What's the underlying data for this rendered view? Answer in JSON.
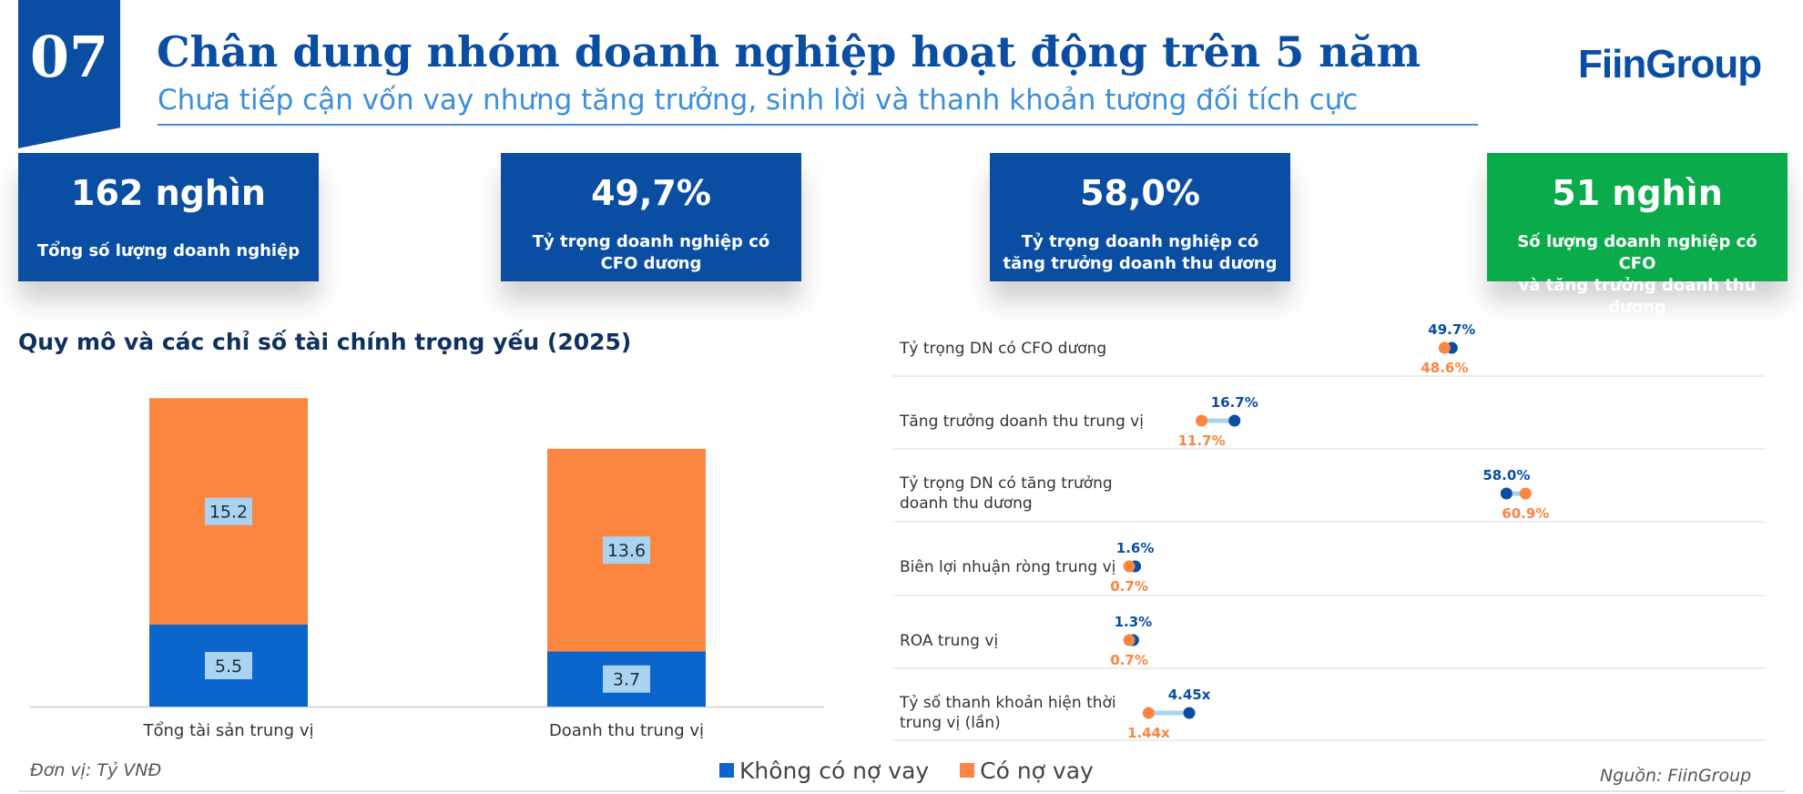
{
  "header": {
    "section_number": "07",
    "title": "Chân dung nhóm doanh nghiệp hoạt động trên 5 năm",
    "subtitle": "Chưa tiếp cận vốn vay nhưng tăng trưởng, sinh lời và thanh khoản tương đối tích cực",
    "logo": "FiinGroup"
  },
  "kpis": [
    {
      "value": "162 nghìn",
      "label": "Tổng số lượng doanh nghiệp",
      "color": "#0a4ea3"
    },
    {
      "value": "49,7%",
      "label_line1": "Tỷ trọng doanh nghiệp có",
      "label_line2": "CFO dương",
      "color": "#0a4ea3"
    },
    {
      "value": "58,0%",
      "label_line1": "Tỷ trọng doanh nghiệp có",
      "label_line2": "tăng trưởng doanh thu dương",
      "color": "#0a4ea3"
    },
    {
      "value": "51 nghìn",
      "label_line1": "Số lượng doanh nghiệp có CFO",
      "label_line2": "và tăng trưởng doanh thu dương",
      "color": "#0aab4b"
    }
  ],
  "section_title": "Quy mô và các chỉ số tài chính trọng yếu (2025)",
  "footer": {
    "unit": "Đơn vị: Tỷ VNĐ",
    "source": "Nguồn: FiinGroup"
  },
  "legend": [
    {
      "label": "Không có nợ vay",
      "color": "#0a66cc"
    },
    {
      "label": "Có nợ vay",
      "color": "#fc8540"
    }
  ],
  "chart_data": [
    {
      "type": "bar",
      "stacked": true,
      "categories": [
        "Tổng tài sản trung vị",
        "Doanh thu trung vị"
      ],
      "series": [
        {
          "name": "Không có nợ vay",
          "values": [
            5.5,
            3.7
          ],
          "labels": [
            "5.5",
            "3.7"
          ],
          "color": "#0a66cc"
        },
        {
          "name": "Có nợ vay",
          "values": [
            15.2,
            13.6
          ],
          "labels": [
            "15.2",
            "13.6"
          ],
          "color": "#fc8540"
        }
      ],
      "ylim": [
        0,
        22
      ]
    },
    {
      "type": "scatter",
      "subtype": "dumbbell",
      "categories": [
        "Tỷ trọng DN có CFO dương",
        "Tăng trưởng doanh thu trung vị",
        "Tỷ trọng DN có tăng trưởng doanh thu dương",
        "Biên lợi nhuận ròng trung vị",
        "ROA trung vị",
        "Tỷ số thanh khoản hiện thời trung vị (lần)"
      ],
      "category_lines": [
        [
          "Tỷ trọng DN có CFO dương"
        ],
        [
          "Tăng trưởng doanh thu trung vị"
        ],
        [
          "Tỷ trọng DN có tăng trưởng",
          "doanh thu dương"
        ],
        [
          "Biên lợi nhuận ròng trung vị"
        ],
        [
          "ROA trung vị"
        ],
        [
          "Tỷ số thanh khoản hiện thời",
          "trung vị (lần)"
        ]
      ],
      "series": [
        {
          "name": "Không có nợ vay",
          "values": [
            49.7,
            16.7,
            58.0,
            1.6,
            1.3,
            4.45
          ],
          "labels": [
            "49.7%",
            "16.7%",
            "58.0%",
            "1.6%",
            "1.3%",
            "4.45x"
          ],
          "color": "#0a4ea3"
        },
        {
          "name": "Có nợ vay",
          "values": [
            48.6,
            11.7,
            60.9,
            0.7,
            0.7,
            1.44
          ],
          "labels": [
            "48.6%",
            "11.7%",
            "60.9%",
            "0.7%",
            "0.7%",
            "1.44x"
          ],
          "color": "#fc8540"
        }
      ],
      "connector_color": "#a9d3f0"
    }
  ]
}
